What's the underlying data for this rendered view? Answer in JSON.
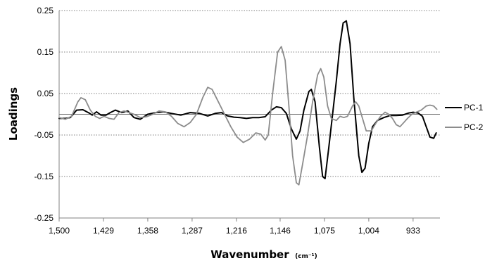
{
  "chart_data": {
    "type": "line",
    "title": "",
    "xlabel": "Wavenumber",
    "xlabel_unit": "(cm⁻¹)",
    "ylabel": "Loadings",
    "xlim": [
      1500,
      890
    ],
    "ylim": [
      -0.25,
      0.25
    ],
    "x_reversed": true,
    "x_ticks": [
      1500,
      1429,
      1358,
      1287,
      1216,
      1146,
      1075,
      1004,
      933
    ],
    "x_tick_labels": [
      "1,500",
      "1,429",
      "1,358",
      "1,287",
      "1,216",
      "1,146",
      "1,075",
      "1,004",
      "933"
    ],
    "y_ticks": [
      0.25,
      0.15,
      0.05,
      -0.05,
      -0.15,
      -0.25
    ],
    "y_tick_labels": [
      "0.25",
      "0.15",
      "0.05",
      "-0.05",
      "-0.15",
      "-0.25"
    ],
    "gridlines": "horizontal dotted",
    "zero_line": true,
    "legend_position": "right",
    "colors": {
      "PC-1": "#000000",
      "PC-2": "#8c8c8c"
    },
    "series": [
      {
        "name": "PC-1",
        "color": "#000000",
        "points": [
          [
            1500,
            -0.01
          ],
          [
            1490,
            -0.01
          ],
          [
            1482,
            -0.008
          ],
          [
            1472,
            0.01
          ],
          [
            1462,
            0.011
          ],
          [
            1452,
            0.003
          ],
          [
            1447,
            -0.002
          ],
          [
            1440,
            0.006
          ],
          [
            1433,
            -0.002
          ],
          [
            1425,
            -0.002
          ],
          [
            1418,
            0.004
          ],
          [
            1410,
            0.01
          ],
          [
            1400,
            0.004
          ],
          [
            1390,
            0.008
          ],
          [
            1380,
            -0.008
          ],
          [
            1370,
            -0.012
          ],
          [
            1358,
            0.0
          ],
          [
            1345,
            0.004
          ],
          [
            1333,
            0.006
          ],
          [
            1320,
            0.002
          ],
          [
            1305,
            -0.002
          ],
          [
            1290,
            0.004
          ],
          [
            1275,
            0.002
          ],
          [
            1262,
            -0.004
          ],
          [
            1250,
            0.002
          ],
          [
            1240,
            0.004
          ],
          [
            1230,
            -0.004
          ],
          [
            1220,
            -0.007
          ],
          [
            1210,
            -0.008
          ],
          [
            1200,
            -0.01
          ],
          [
            1190,
            -0.008
          ],
          [
            1180,
            -0.008
          ],
          [
            1170,
            -0.006
          ],
          [
            1160,
            0.01
          ],
          [
            1152,
            0.018
          ],
          [
            1144,
            0.016
          ],
          [
            1136,
            0.002
          ],
          [
            1128,
            -0.035
          ],
          [
            1120,
            -0.06
          ],
          [
            1114,
            -0.04
          ],
          [
            1108,
            0.01
          ],
          [
            1100,
            0.055
          ],
          [
            1096,
            0.06
          ],
          [
            1090,
            0.03
          ],
          [
            1083,
            -0.08
          ],
          [
            1078,
            -0.15
          ],
          [
            1074,
            -0.155
          ],
          [
            1068,
            -0.08
          ],
          [
            1062,
            0.0
          ],
          [
            1056,
            0.08
          ],
          [
            1050,
            0.17
          ],
          [
            1045,
            0.22
          ],
          [
            1040,
            0.225
          ],
          [
            1034,
            0.17
          ],
          [
            1028,
            0.04
          ],
          [
            1020,
            -0.1
          ],
          [
            1015,
            -0.14
          ],
          [
            1010,
            -0.13
          ],
          [
            1004,
            -0.07
          ],
          [
            998,
            -0.03
          ],
          [
            990,
            -0.015
          ],
          [
            980,
            -0.008
          ],
          [
            970,
            -0.003
          ],
          [
            960,
            -0.003
          ],
          [
            950,
            -0.002
          ],
          [
            940,
            0.003
          ],
          [
            933,
            0.005
          ],
          [
            925,
            0.003
          ],
          [
            918,
            -0.005
          ],
          [
            912,
            -0.03
          ],
          [
            906,
            -0.055
          ],
          [
            900,
            -0.058
          ],
          [
            896,
            -0.045
          ]
        ]
      },
      {
        "name": "PC-2",
        "color": "#8c8c8c",
        "points": [
          [
            1500,
            -0.008
          ],
          [
            1490,
            -0.012
          ],
          [
            1480,
            -0.005
          ],
          [
            1470,
            0.03
          ],
          [
            1465,
            0.04
          ],
          [
            1458,
            0.035
          ],
          [
            1450,
            0.01
          ],
          [
            1442,
            -0.005
          ],
          [
            1435,
            -0.01
          ],
          [
            1428,
            -0.005
          ],
          [
            1420,
            -0.01
          ],
          [
            1412,
            -0.012
          ],
          [
            1404,
            0.004
          ],
          [
            1396,
            0.008
          ],
          [
            1388,
            0.004
          ],
          [
            1380,
            0.0
          ],
          [
            1370,
            -0.008
          ],
          [
            1360,
            -0.006
          ],
          [
            1350,
            0.0
          ],
          [
            1340,
            0.008
          ],
          [
            1330,
            0.006
          ],
          [
            1320,
            -0.005
          ],
          [
            1310,
            -0.022
          ],
          [
            1300,
            -0.03
          ],
          [
            1290,
            -0.02
          ],
          [
            1280,
            0.0
          ],
          [
            1270,
            0.04
          ],
          [
            1262,
            0.065
          ],
          [
            1255,
            0.06
          ],
          [
            1245,
            0.03
          ],
          [
            1235,
            0.0
          ],
          [
            1225,
            -0.03
          ],
          [
            1215,
            -0.055
          ],
          [
            1205,
            -0.068
          ],
          [
            1195,
            -0.06
          ],
          [
            1185,
            -0.045
          ],
          [
            1177,
            -0.048
          ],
          [
            1170,
            -0.062
          ],
          [
            1165,
            -0.05
          ],
          [
            1158,
            0.05
          ],
          [
            1150,
            0.15
          ],
          [
            1144,
            0.163
          ],
          [
            1138,
            0.13
          ],
          [
            1132,
            0.02
          ],
          [
            1126,
            -0.1
          ],
          [
            1120,
            -0.165
          ],
          [
            1116,
            -0.17
          ],
          [
            1110,
            -0.12
          ],
          [
            1102,
            -0.05
          ],
          [
            1094,
            0.03
          ],
          [
            1086,
            0.095
          ],
          [
            1081,
            0.11
          ],
          [
            1076,
            0.09
          ],
          [
            1070,
            0.02
          ],
          [
            1064,
            -0.01
          ],
          [
            1056,
            -0.015
          ],
          [
            1050,
            -0.005
          ],
          [
            1044,
            -0.008
          ],
          [
            1038,
            -0.005
          ],
          [
            1030,
            0.02
          ],
          [
            1025,
            0.03
          ],
          [
            1020,
            0.02
          ],
          [
            1014,
            -0.01
          ],
          [
            1008,
            -0.04
          ],
          [
            1000,
            -0.04
          ],
          [
            992,
            -0.02
          ],
          [
            985,
            -0.005
          ],
          [
            978,
            0.005
          ],
          [
            972,
            0.0
          ],
          [
            966,
            -0.01
          ],
          [
            960,
            -0.025
          ],
          [
            954,
            -0.03
          ],
          [
            948,
            -0.02
          ],
          [
            942,
            -0.01
          ],
          [
            935,
            0.0
          ],
          [
            928,
            0.005
          ],
          [
            920,
            0.01
          ],
          [
            912,
            0.02
          ],
          [
            906,
            0.022
          ],
          [
            900,
            0.02
          ],
          [
            895,
            0.012
          ]
        ]
      }
    ]
  }
}
